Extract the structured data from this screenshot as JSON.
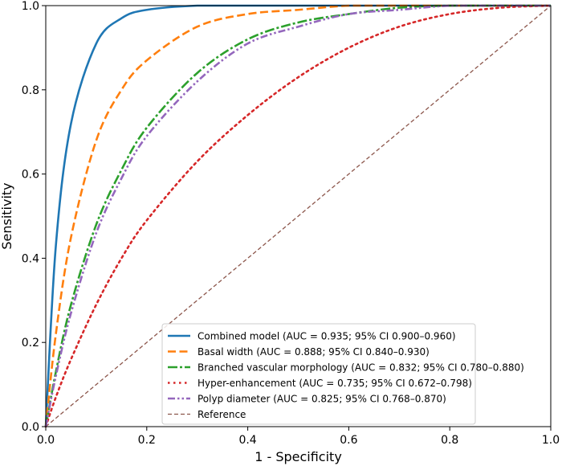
{
  "chart_data": {
    "type": "line",
    "title": "",
    "xlabel": "1 - Specificity",
    "ylabel": "Sensitivity",
    "xlim": [
      0,
      1
    ],
    "ylim": [
      0,
      1
    ],
    "xticks": [
      "0.0",
      "0.2",
      "0.4",
      "0.6",
      "0.8",
      "1.0"
    ],
    "yticks": [
      "0.0",
      "0.2",
      "0.4",
      "0.6",
      "0.8",
      "1.0"
    ],
    "grid": false,
    "legend_position": "lower-right",
    "x": [
      0,
      0.02,
      0.05,
      0.1,
      0.15,
      0.2,
      0.3,
      0.4,
      0.5,
      0.6,
      0.7,
      0.8,
      0.9,
      1.0
    ],
    "series": [
      {
        "name": "Combined model (AUC = 0.935; 95% CI 0.900–0.960)",
        "color": "#1f77b4",
        "style": "solid",
        "values": [
          0,
          0.43,
          0.72,
          0.91,
          0.97,
          0.99,
          1.0,
          1.0,
          1.0,
          1.0,
          1.0,
          1.0,
          1.0,
          1.0
        ]
      },
      {
        "name": "Basal width (AUC = 0.888; 95% CI 0.840–0.930)",
        "color": "#ff7f0e",
        "style": "dashed",
        "values": [
          0,
          0.22,
          0.45,
          0.68,
          0.8,
          0.87,
          0.95,
          0.98,
          0.99,
          1.0,
          1.0,
          1.0,
          1.0,
          1.0
        ]
      },
      {
        "name": "Branched vascular morphology (AUC = 0.832; 95% CI 0.780–0.880)",
        "color": "#2ca02c",
        "style": "dashdot",
        "values": [
          0,
          0.13,
          0.29,
          0.48,
          0.61,
          0.71,
          0.84,
          0.92,
          0.96,
          0.98,
          0.995,
          1.0,
          1.0,
          1.0
        ]
      },
      {
        "name": "Hyper-enhancement (AUC = 0.735; 95% CI 0.672–0.798)",
        "color": "#d62728",
        "style": "dotted",
        "values": [
          0,
          0.07,
          0.16,
          0.29,
          0.4,
          0.49,
          0.63,
          0.74,
          0.83,
          0.9,
          0.95,
          0.98,
          0.995,
          1.0
        ]
      },
      {
        "name": "Polyp diameter (AUC = 0.825; 95% CI 0.768–0.870)",
        "color": "#9467bd",
        "style": "dashdotdot",
        "values": [
          0,
          0.12,
          0.27,
          0.46,
          0.59,
          0.69,
          0.82,
          0.91,
          0.95,
          0.98,
          0.99,
          1.0,
          1.0,
          1.0
        ]
      },
      {
        "name": "Reference",
        "color": "#8c564b",
        "style": "thin-dashed",
        "values": [
          0,
          0.02,
          0.05,
          0.1,
          0.15,
          0.2,
          0.3,
          0.4,
          0.5,
          0.6,
          0.7,
          0.8,
          0.9,
          1.0
        ]
      }
    ]
  }
}
